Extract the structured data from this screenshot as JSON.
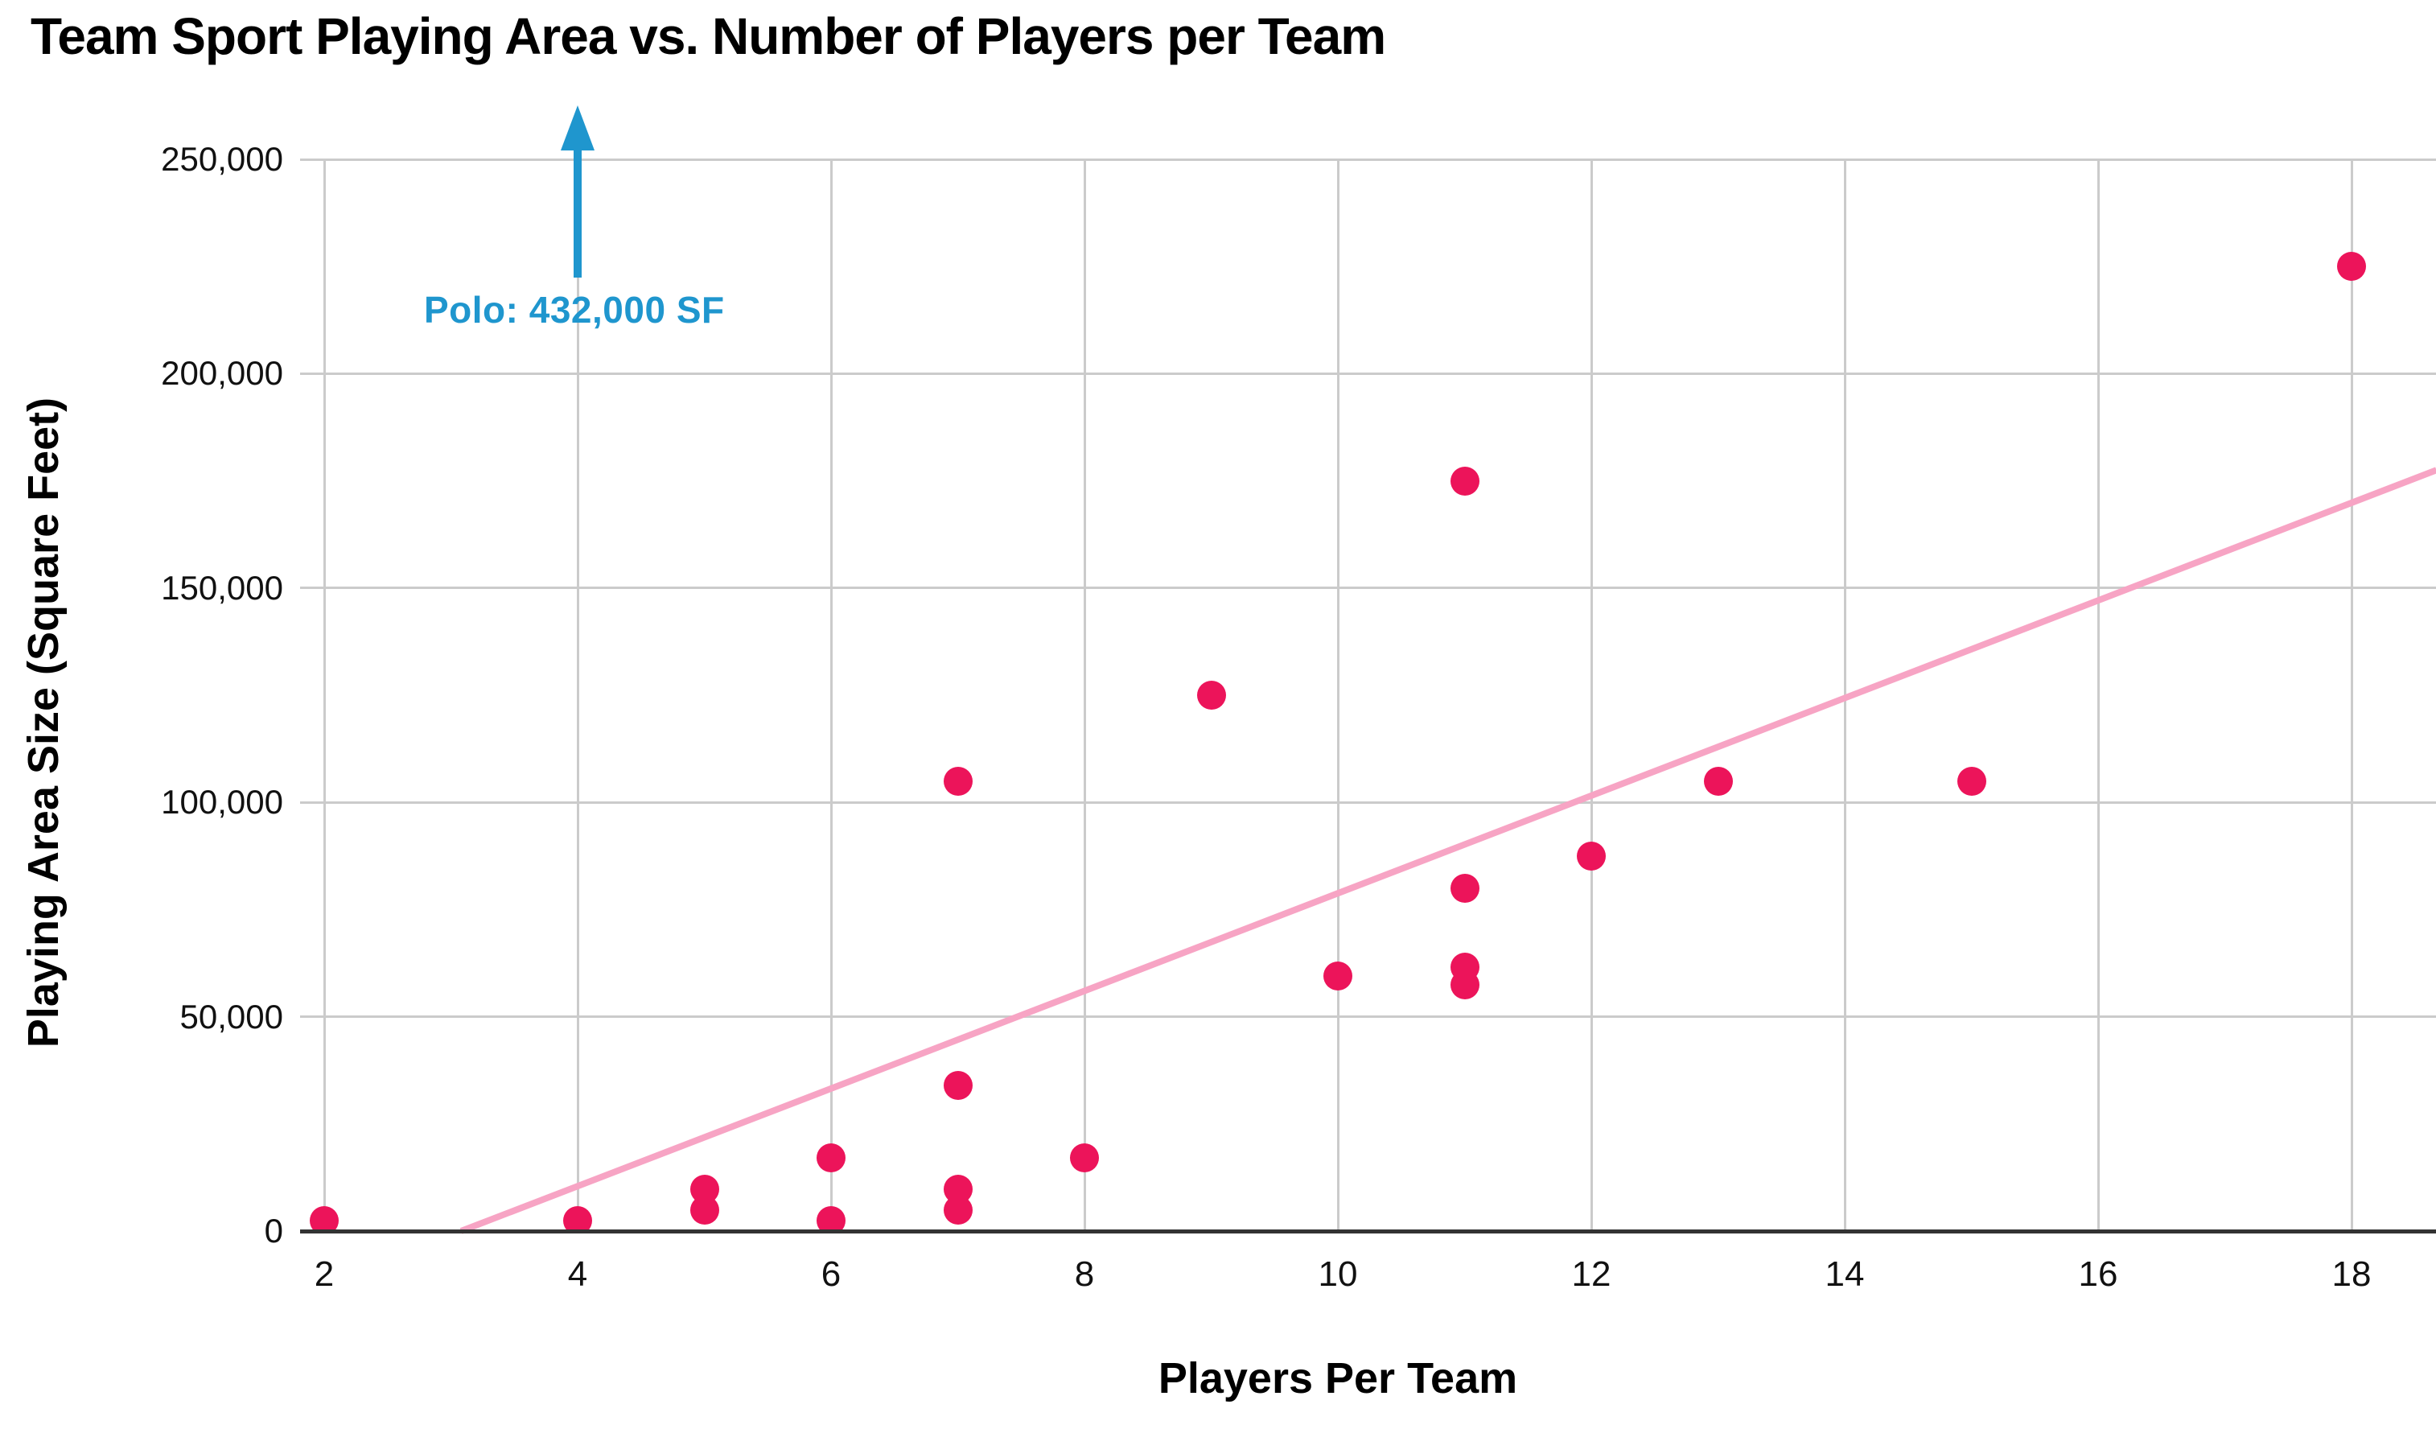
{
  "title": "Team Sport Playing Area vs. Number of Players per Team",
  "axes": {
    "x": {
      "title": "Players Per Team",
      "ticks": [
        "2",
        "4",
        "6",
        "8",
        "10",
        "12",
        "14",
        "16",
        "18"
      ],
      "tick_values": [
        2,
        4,
        6,
        8,
        10,
        12,
        14,
        16,
        18
      ]
    },
    "y": {
      "title": "Playing Area Size (Square Feet)",
      "ticks": [
        "0",
        "50,000",
        "100,000",
        "150,000",
        "200,000",
        "250,000"
      ],
      "tick_values": [
        0,
        50000,
        100000,
        150000,
        200000,
        250000
      ]
    }
  },
  "annotation": {
    "label": "Polo: 432,000 SF",
    "arrow_x_value": 4
  },
  "colors": {
    "dot": "#EC145A",
    "trendline": "#F7A4C4",
    "gridline": "#CBCBCB",
    "axis_line": "#333333",
    "annotation": "#1F96CE",
    "text": "#000000",
    "background": "#FFFFFF"
  },
  "chart_data": {
    "type": "scatter",
    "title": "Team Sport Playing Area vs. Number of Players per Team",
    "xlabel": "Players Per Team",
    "ylabel": "Playing Area Size (Square Feet)",
    "xlim": [
      1.9,
      18.7
    ],
    "ylim": [
      0,
      250000
    ],
    "x_ticks": [
      2,
      4,
      6,
      8,
      10,
      12,
      14,
      16,
      18
    ],
    "y_ticks": [
      0,
      50000,
      100000,
      150000,
      200000,
      250000
    ],
    "grid": true,
    "legend": false,
    "points": [
      [
        2,
        2500
      ],
      [
        4,
        2500
      ],
      [
        5,
        4900
      ],
      [
        5,
        9800
      ],
      [
        6,
        2500
      ],
      [
        6,
        17000
      ],
      [
        7,
        4900
      ],
      [
        7,
        9800
      ],
      [
        7,
        34000
      ],
      [
        7,
        105000
      ],
      [
        8,
        17000
      ],
      [
        9,
        125000
      ],
      [
        10,
        59500
      ],
      [
        11,
        57500
      ],
      [
        11,
        61500
      ],
      [
        11,
        80000
      ],
      [
        11,
        175000
      ],
      [
        12,
        87500
      ],
      [
        13,
        105000
      ],
      [
        15,
        105000
      ],
      [
        18,
        225000
      ]
    ],
    "trendline": {
      "x_start": 3.08,
      "y_start": 0,
      "x_end": 18.67,
      "y_end": 177500
    },
    "annotation": {
      "text": "Polo: 432,000 SF",
      "at_x": 4,
      "value_sf": 432000,
      "off_scale": true
    }
  }
}
